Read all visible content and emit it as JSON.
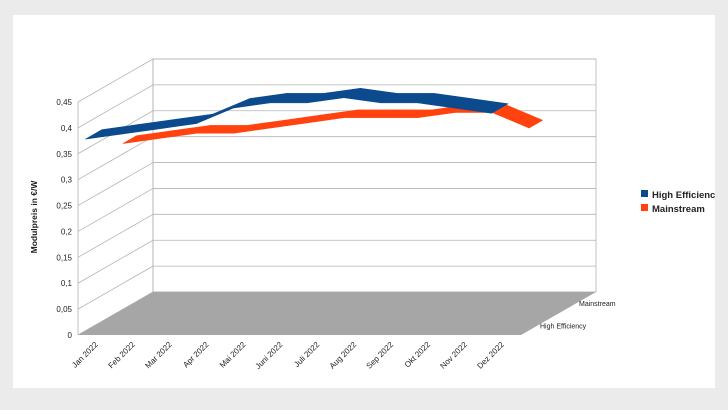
{
  "chart_data": {
    "type": "line",
    "style": "3d-ribbon",
    "ylabel": "Modulpreis in €/W",
    "ylim": [
      0,
      0.45
    ],
    "yticks": [
      "0",
      "0,05",
      "0,1",
      "0,15",
      "0,2",
      "0,25",
      "0,3",
      "0,35",
      "0,4",
      "0,45"
    ],
    "categories": [
      "Jan 2022",
      "Feb 2022",
      "Mar 2022",
      "Apr 2022",
      "Mai 2022",
      "Juni 2022",
      "Juli 2022",
      "Aug 2022",
      "Sep 2022",
      "Okt 2022",
      "Nov 2022",
      "Dez 2022"
    ],
    "depth_labels": [
      "Mainstream",
      "High Efficiency"
    ],
    "legend_position": "right",
    "grid": true,
    "series": [
      {
        "name": "High Efficiency",
        "color": "#0c4a8e",
        "values": [
          0.37,
          0.38,
          0.39,
          0.4,
          0.43,
          0.44,
          0.44,
          0.45,
          0.44,
          0.44,
          0.43,
          0.42
        ]
      },
      {
        "name": "Mainstream",
        "color": "#ff420e",
        "values": [
          0.32,
          0.33,
          0.34,
          0.34,
          0.35,
          0.36,
          0.37,
          0.37,
          0.37,
          0.38,
          0.38,
          0.35
        ]
      }
    ]
  }
}
